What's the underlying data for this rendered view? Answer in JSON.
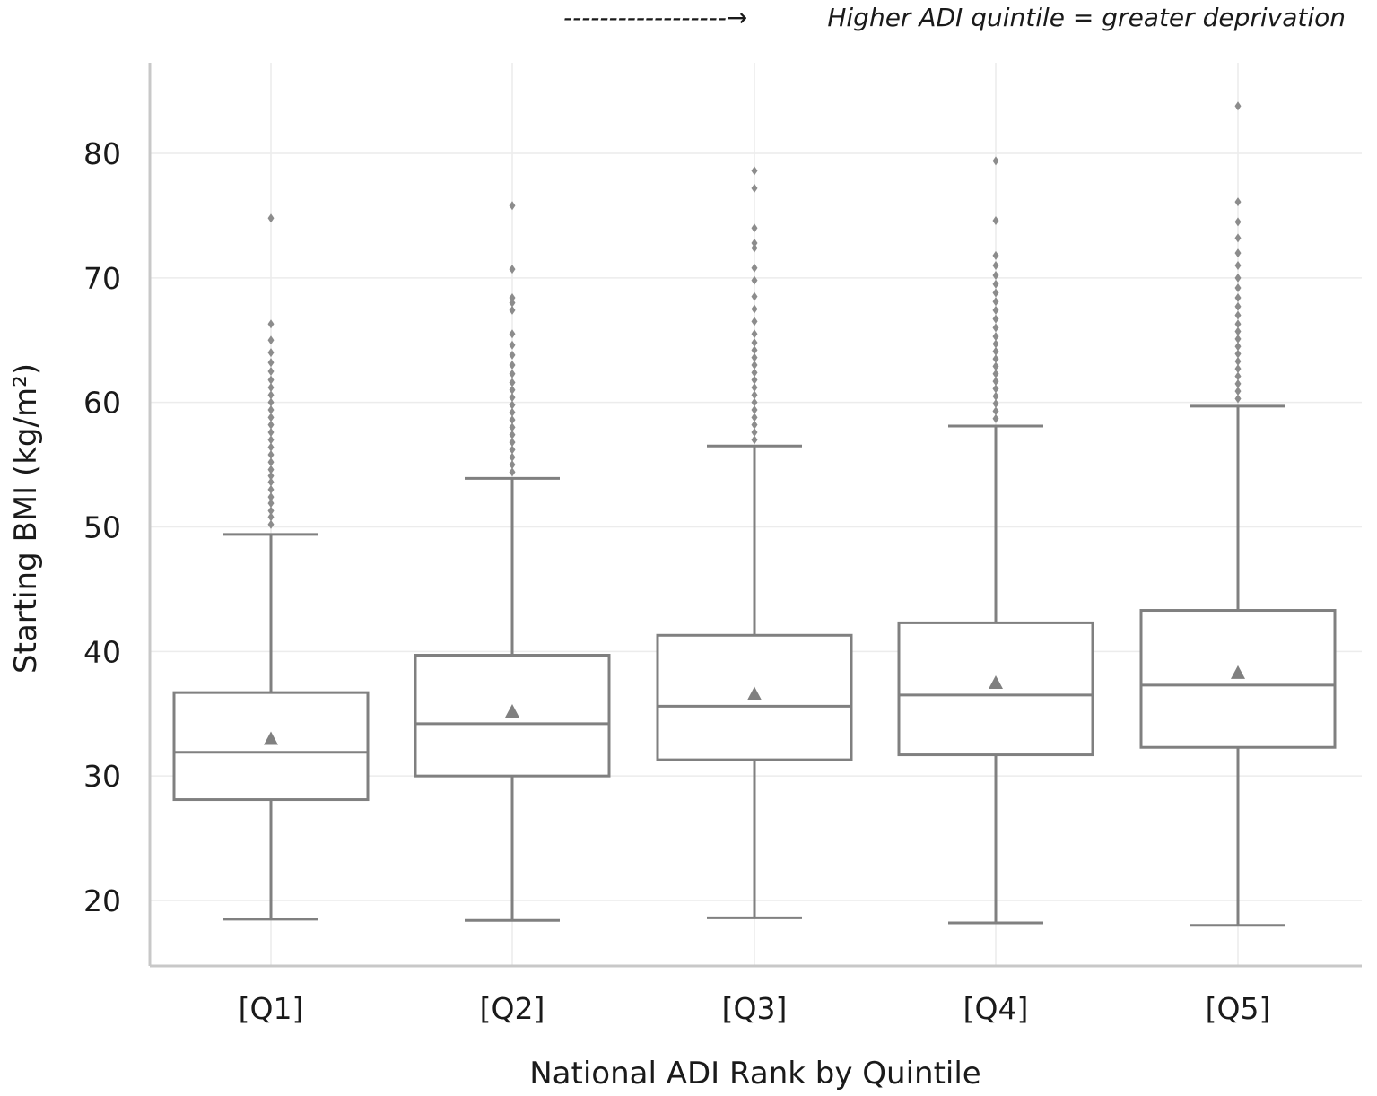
{
  "annotation": {
    "arrow": "------------------→",
    "text": "Higher ADI quintile = greater deprivation"
  },
  "chart_data": {
    "type": "box",
    "xlabel": "National ADI Rank by Quintile",
    "ylabel": "Starting BMI (kg/m²)",
    "ylim": [
      15,
      86
    ],
    "y_ticks": [
      20,
      30,
      40,
      50,
      60,
      70,
      80
    ],
    "grid": true,
    "categories": [
      "[Q1]",
      "[Q2]",
      "[Q3]",
      "[Q4]",
      "[Q5]"
    ],
    "boxes": [
      {
        "category": "[Q1]",
        "whisker_low": 18.5,
        "q1": 28.1,
        "median": 31.9,
        "q3": 36.7,
        "whisker_high": 49.4,
        "mean": 33.0,
        "outliers": [
          50.2,
          50.8,
          51.3,
          51.9,
          52.4,
          53.0,
          53.6,
          54.1,
          54.6,
          55.2,
          55.8,
          56.4,
          57.0,
          57.6,
          58.2,
          58.8,
          59.4,
          60.0,
          60.6,
          61.2,
          61.8,
          62.5,
          63.2,
          64.0,
          65.0,
          66.3,
          74.8
        ]
      },
      {
        "category": "[Q2]",
        "whisker_low": 18.4,
        "q1": 30.0,
        "median": 34.2,
        "q3": 39.7,
        "whisker_high": 53.9,
        "mean": 35.2,
        "outliers": [
          54.4,
          55.0,
          55.6,
          56.2,
          56.8,
          57.4,
          58.0,
          58.6,
          59.2,
          59.8,
          60.4,
          61.0,
          61.6,
          62.3,
          63.0,
          63.8,
          64.6,
          65.5,
          67.4,
          68.0,
          68.4,
          70.7,
          75.8
        ]
      },
      {
        "category": "[Q3]",
        "whisker_low": 18.6,
        "q1": 31.3,
        "median": 35.6,
        "q3": 41.3,
        "whisker_high": 56.5,
        "mean": 36.6,
        "outliers": [
          57.0,
          57.6,
          58.2,
          58.8,
          59.4,
          60.0,
          60.6,
          61.2,
          61.8,
          62.4,
          63.0,
          63.6,
          64.2,
          64.8,
          65.5,
          66.5,
          67.5,
          68.5,
          69.8,
          70.8,
          72.4,
          72.8,
          74.0,
          77.2,
          78.6
        ]
      },
      {
        "category": "[Q4]",
        "whisker_low": 18.2,
        "q1": 31.7,
        "median": 36.5,
        "q3": 42.3,
        "whisker_high": 58.1,
        "mean": 37.5,
        "outliers": [
          58.7,
          59.3,
          59.9,
          60.5,
          61.1,
          61.7,
          62.3,
          62.9,
          63.5,
          64.1,
          64.7,
          65.3,
          66.0,
          66.7,
          67.4,
          68.1,
          68.8,
          69.5,
          70.2,
          71.0,
          71.8,
          74.6,
          79.4
        ]
      },
      {
        "category": "[Q5]",
        "whisker_low": 18.0,
        "q1": 32.3,
        "median": 37.3,
        "q3": 43.3,
        "whisker_high": 59.7,
        "mean": 38.3,
        "outliers": [
          60.3,
          60.9,
          61.5,
          62.1,
          62.7,
          63.3,
          63.9,
          64.5,
          65.1,
          65.7,
          66.3,
          67.0,
          67.7,
          68.4,
          69.2,
          70.0,
          71.0,
          72.0,
          73.2,
          74.5,
          76.1,
          83.8
        ]
      }
    ],
    "colors": {
      "box": "#808080",
      "grid": "#ececec",
      "axis": "#c8c8c8",
      "outlier": "#8c8c8c"
    }
  }
}
